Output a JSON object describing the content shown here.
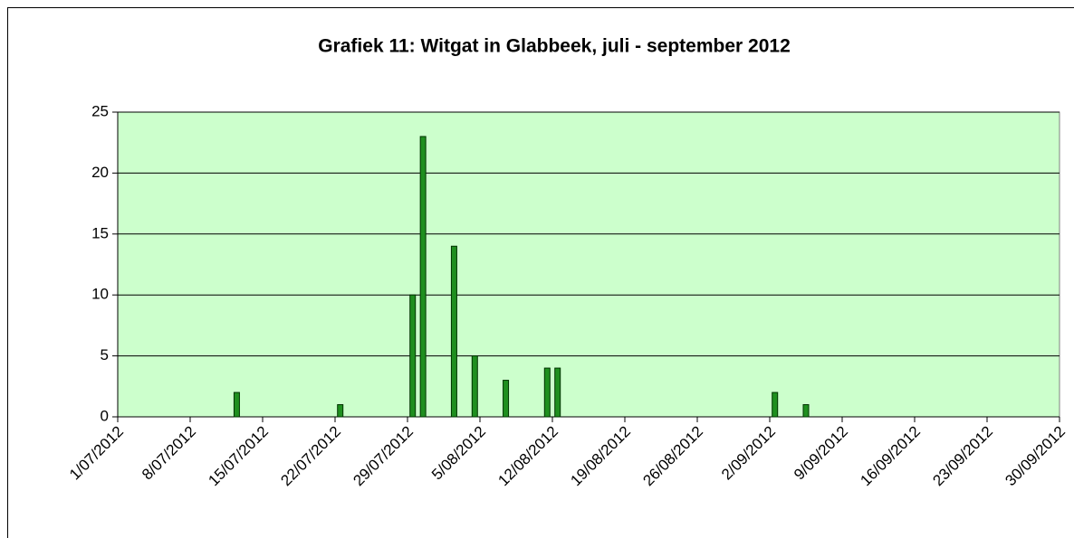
{
  "chart_data": {
    "type": "bar",
    "title": "Grafiek 11: Witgat in Glabbeek, juli - september 2012",
    "x": [
      "12/07/2012",
      "22/07/2012",
      "29/07/2012",
      "30/07/2012",
      "2/08/2012",
      "4/08/2012",
      "7/08/2012",
      "11/08/2012",
      "12/08/2012",
      "2/09/2012",
      "5/09/2012"
    ],
    "values": [
      2,
      1,
      10,
      23,
      14,
      5,
      3,
      4,
      4,
      2,
      1
    ],
    "color": "#1f8f1f",
    "xlim": [
      "1/07/2012",
      "30/09/2012"
    ],
    "xticks": [
      "1/07/2012",
      "8/07/2012",
      "15/07/2012",
      "22/07/2012",
      "29/07/2012",
      "5/08/2012",
      "12/08/2012",
      "19/08/2012",
      "26/08/2012",
      "2/09/2012",
      "9/09/2012",
      "16/09/2012",
      "23/09/2012",
      "30/09/2012"
    ],
    "ylim": [
      0,
      25
    ],
    "yticks": [
      0,
      5,
      10,
      15,
      20,
      25
    ],
    "grid": true
  }
}
